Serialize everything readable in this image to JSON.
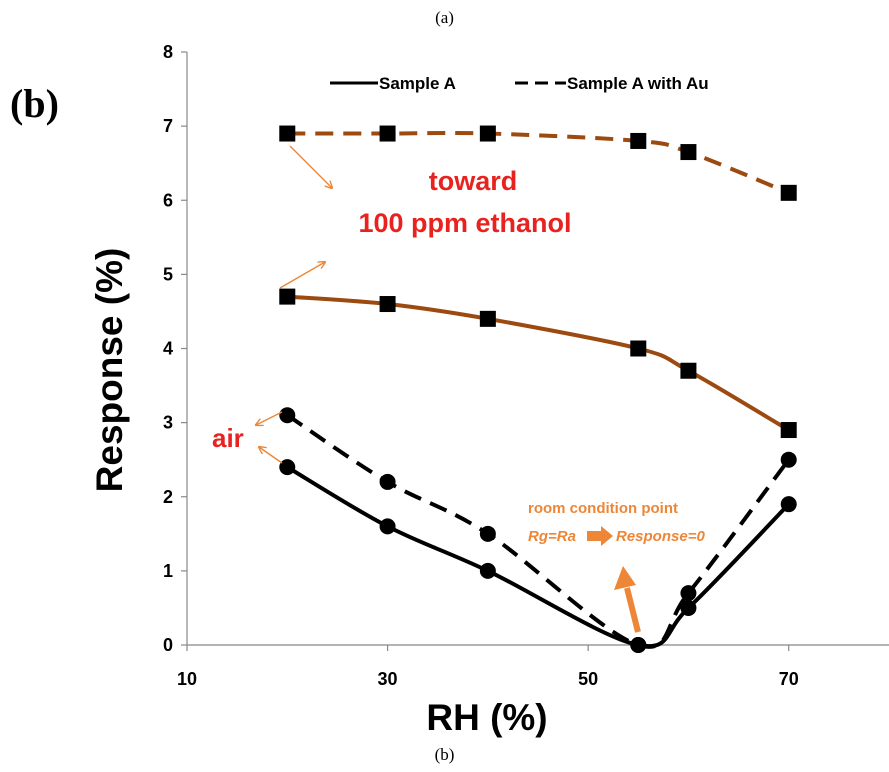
{
  "captions": {
    "top": "(a)",
    "bottom": "(b)"
  },
  "panel_label": "(b)",
  "colors": {
    "black": "#000000",
    "brown": "#9c4a10",
    "red": "#e8231f",
    "orange": "#ed8636"
  },
  "annotations": {
    "gas_line1": "toward",
    "gas_line2": "100 ppm ethanol",
    "air": "air",
    "room_line1": "room condition point",
    "room_rg": "Rg=Ra",
    "room_resp": "Response=0"
  },
  "chart_data": {
    "type": "line",
    "xlabel": "RH (%)",
    "ylabel": "Response (%)",
    "xlim": [
      10,
      80
    ],
    "ylim": [
      0,
      8
    ],
    "xticks": [
      "10",
      "30",
      "50",
      "70"
    ],
    "yticks": [
      "0",
      "1",
      "2",
      "3",
      "4",
      "5",
      "6",
      "7",
      "8"
    ],
    "legend_position": "top",
    "grid": false,
    "series": [
      {
        "name": "Sample A",
        "condition": "air",
        "style": "solid",
        "marker": "circle",
        "color": "#000000",
        "x": [
          20,
          30,
          40,
          55,
          60,
          70
        ],
        "y": [
          2.4,
          1.6,
          1.0,
          0.0,
          0.5,
          1.9
        ]
      },
      {
        "name": "Sample A with Au",
        "condition": "air",
        "style": "dashed",
        "marker": "circle",
        "color": "#000000",
        "x": [
          20,
          30,
          40,
          55,
          60,
          70
        ],
        "y": [
          3.1,
          2.2,
          1.5,
          0.0,
          0.7,
          2.5
        ]
      },
      {
        "condition": "100 ppm ethanol",
        "style": "solid",
        "marker": "square",
        "color": "#9c4a10",
        "x": [
          20,
          30,
          40,
          55,
          60,
          70
        ],
        "y": [
          4.7,
          4.6,
          4.4,
          4.0,
          3.7,
          2.9
        ]
      },
      {
        "condition": "100 ppm ethanol",
        "style": "dashed",
        "marker": "square",
        "color": "#9c4a10",
        "x": [
          20,
          30,
          40,
          55,
          60,
          70
        ],
        "y": [
          6.9,
          6.9,
          6.9,
          6.8,
          6.65,
          6.1
        ]
      }
    ]
  }
}
